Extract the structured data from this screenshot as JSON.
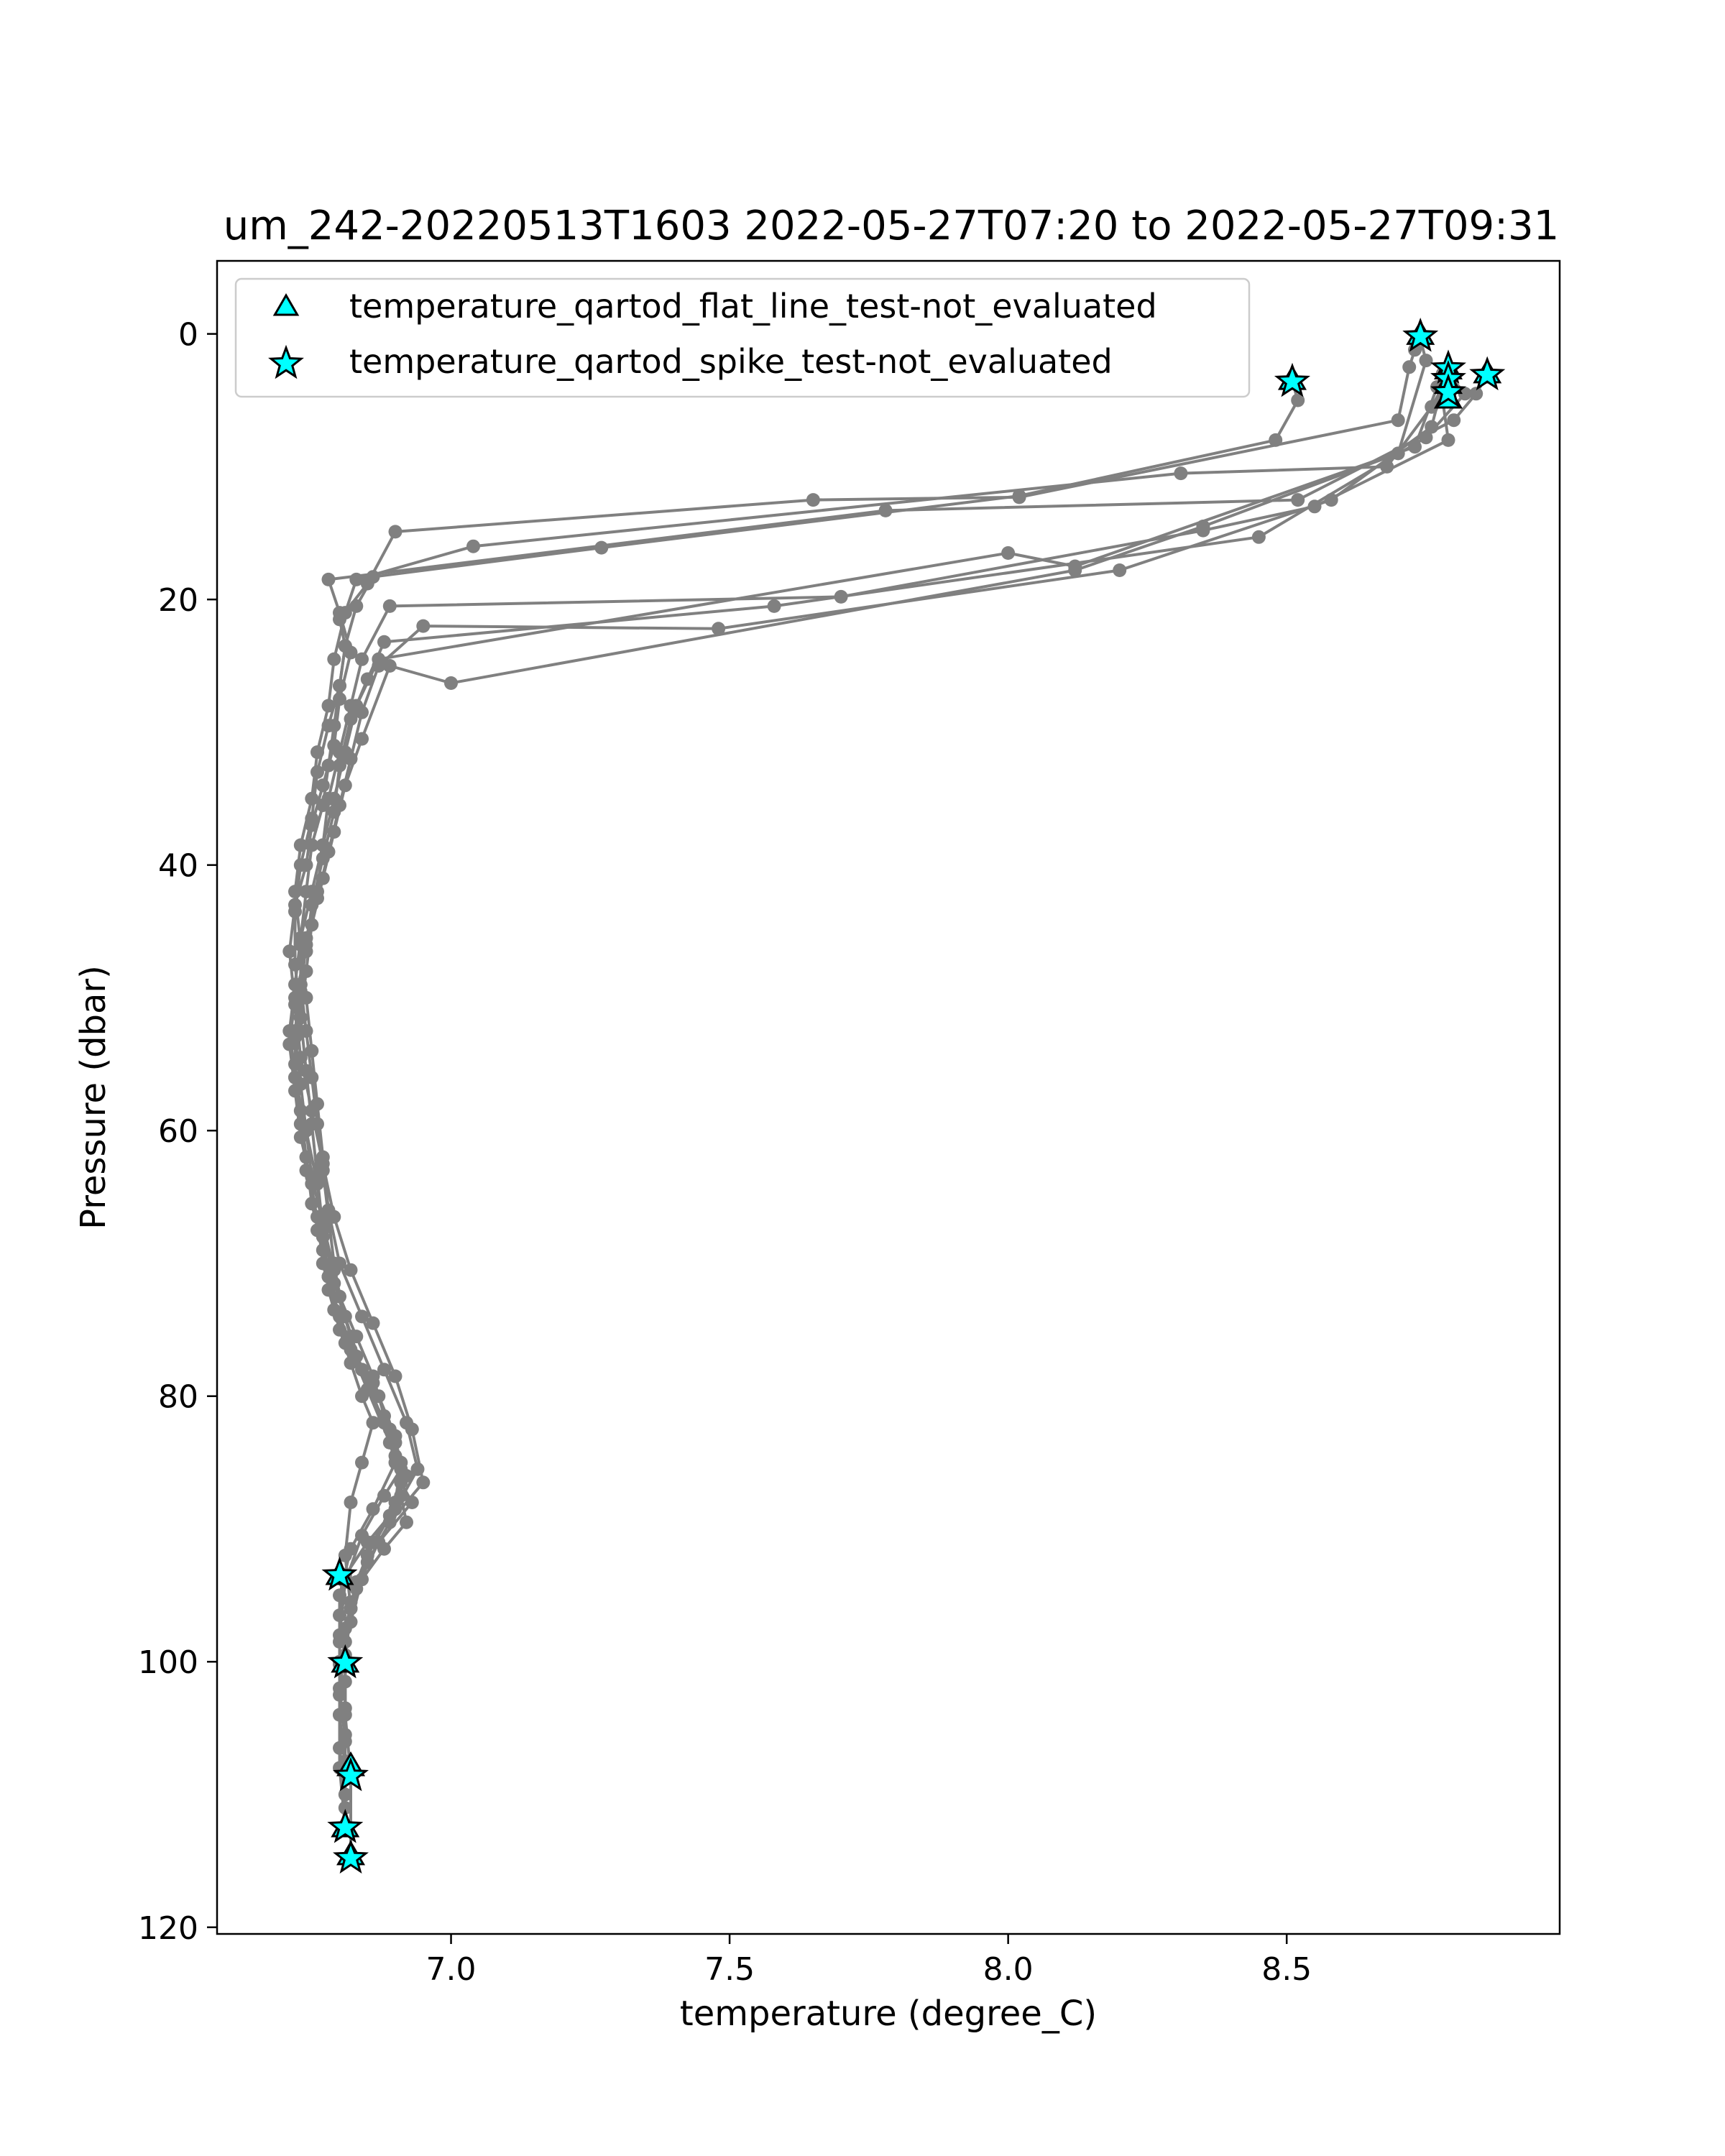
{
  "chart_data": {
    "type": "line",
    "title": "um_242-20220513T1603 2022-05-27T07:20 to 2022-05-27T09:31",
    "xlabel": "temperature (degree_C)",
    "ylabel": "Pressure (dbar)",
    "xlim": [
      6.58,
      8.99
    ],
    "ylim": [
      120.5,
      -5.5
    ],
    "y_inverted": true,
    "grid": false,
    "x_ticks": [
      7.0,
      7.5,
      8.0,
      8.5
    ],
    "x_tick_labels": [
      "7.0",
      "7.5",
      "8.0",
      "8.5"
    ],
    "y_ticks": [
      0,
      20,
      40,
      60,
      80,
      100,
      120
    ],
    "y_tick_labels": [
      "0",
      "20",
      "40",
      "60",
      "80",
      "100",
      "120"
    ],
    "legend_position": "upper-left",
    "line_color": "#808080",
    "marker_color": "#00ffff",
    "legend": [
      {
        "label": "temperature_qartod_flat_line_test-not_evaluated",
        "marker": "triangle"
      },
      {
        "label": "temperature_qartod_spike_test-not_evaluated",
        "marker": "star"
      }
    ],
    "profiles": [
      {
        "x": [
          8.74,
          8.73,
          8.72,
          8.7,
          8.02,
          7.65,
          6.9,
          6.85,
          6.8,
          6.81,
          6.8,
          6.79,
          6.78,
          6.77,
          6.75,
          6.74,
          6.73,
          6.73,
          6.74,
          6.75,
          6.76,
          6.77,
          6.78,
          6.79,
          6.8,
          6.83,
          6.86,
          6.88,
          6.9,
          6.91,
          6.92,
          6.88,
          6.84,
          6.82,
          6.8,
          6.8,
          6.81,
          6.81
        ],
        "y": [
          0.2,
          1.2,
          2.5,
          6.5,
          12.3,
          12.5,
          14.9,
          18.8,
          21.5,
          23.5,
          26.5,
          29.5,
          32.5,
          35.5,
          38.5,
          42.0,
          45.5,
          49.0,
          52.5,
          56.0,
          59.5,
          63.0,
          66.5,
          70.0,
          72.5,
          75.5,
          78.5,
          81.5,
          84.5,
          87.5,
          89.5,
          91.5,
          93.8,
          97.0,
          100.2,
          104.0,
          108.0,
          111.0
        ]
      },
      {
        "x": [
          8.79,
          8.78,
          8.76,
          8.68,
          8.31,
          7.04,
          6.83,
          6.81,
          6.79,
          6.78,
          6.76,
          6.75,
          6.73,
          6.72,
          6.73,
          6.74,
          6.75,
          6.76,
          6.77,
          6.78,
          6.8,
          6.84,
          6.88,
          6.92,
          6.94,
          6.9,
          6.85,
          6.81,
          6.8,
          6.8,
          6.8,
          6.8,
          6.81
        ],
        "y": [
          2.6,
          4.0,
          5.5,
          10.0,
          10.5,
          16.0,
          18.5,
          21.0,
          24.5,
          28.0,
          31.5,
          35.0,
          38.5,
          42.0,
          46.0,
          50.0,
          54.0,
          58.0,
          62.0,
          66.0,
          70.0,
          74.0,
          78.0,
          82.0,
          85.5,
          88.5,
          91.0,
          93.5,
          96.5,
          100.0,
          104.0,
          108.0,
          112.5
        ]
      },
      {
        "x": [
          8.86,
          8.84,
          8.8,
          8.52,
          7.78,
          6.78,
          6.8,
          6.82,
          6.8,
          6.79,
          6.77,
          6.75,
          6.74,
          6.72,
          6.71,
          6.72,
          6.73,
          6.75,
          6.77,
          6.79,
          6.82,
          6.86,
          6.9,
          6.93,
          6.95,
          6.89,
          6.85,
          6.82,
          6.81,
          6.81,
          6.82,
          6.82
        ],
        "y": [
          3.1,
          4.5,
          6.5,
          12.5,
          13.3,
          18.5,
          21.0,
          24.0,
          27.5,
          31.0,
          34.0,
          37.0,
          40.0,
          43.0,
          46.5,
          50.5,
          54.5,
          58.5,
          62.5,
          66.5,
          70.5,
          74.5,
          78.5,
          82.5,
          86.5,
          89.5,
          92.5,
          96.0,
          100.0,
          104.0,
          108.5,
          114.8
        ]
      },
      {
        "x": [
          8.51,
          8.52,
          8.48,
          8.02,
          7.27,
          6.86,
          6.83,
          6.81,
          6.8,
          6.78,
          6.76,
          6.75,
          6.73,
          6.72,
          6.72,
          6.73,
          6.74,
          6.75,
          6.76,
          6.77,
          6.79,
          6.82,
          6.85,
          6.89,
          6.91,
          6.93,
          6.87,
          6.83,
          6.81,
          6.8,
          6.8,
          6.81
        ],
        "y": [
          3.6,
          5.0,
          8.0,
          12.2,
          16.1,
          18.3,
          20.5,
          23.5,
          26.5,
          29.5,
          33.0,
          36.5,
          40.0,
          43.5,
          47.5,
          51.5,
          55.5,
          59.5,
          63.5,
          67.5,
          71.5,
          75.5,
          79.5,
          83.5,
          86.5,
          88.0,
          91.0,
          94.5,
          98.5,
          102.5,
          106.5,
          110.0
        ]
      },
      {
        "x": [
          8.79,
          8.78,
          8.79,
          8.55,
          8.35,
          7.7,
          6.89,
          6.84,
          6.82,
          6.8,
          6.78,
          6.77,
          6.75,
          6.73,
          6.72,
          6.71,
          6.72,
          6.74,
          6.76,
          6.77,
          6.78,
          6.81,
          6.86,
          6.9,
          6.91,
          6.88,
          6.84,
          6.81,
          6.8,
          6.8,
          6.81
        ],
        "y": [
          4.4,
          5.0,
          8.0,
          13.0,
          14.8,
          19.8,
          20.5,
          24.5,
          28.0,
          31.5,
          35.0,
          38.5,
          42.0,
          45.5,
          49.0,
          52.5,
          56.0,
          60.0,
          64.0,
          68.0,
          71.0,
          76.0,
          79.0,
          83.0,
          85.5,
          87.5,
          90.5,
          94.0,
          98.0,
          102.0,
          106.0
        ]
      },
      {
        "x": [
          8.79,
          8.82,
          8.75,
          8.45,
          7.58,
          6.88,
          6.85,
          6.82,
          6.8,
          6.79,
          6.77,
          6.75,
          6.74,
          6.72,
          6.71,
          6.72,
          6.73,
          6.75,
          6.76,
          6.78,
          6.8,
          6.83,
          6.87,
          6.9,
          6.92,
          6.89,
          6.85,
          6.82,
          6.81,
          6.81,
          6.81
        ],
        "y": [
          3.0,
          4.5,
          7.8,
          15.3,
          20.5,
          23.2,
          26.0,
          29.0,
          32.5,
          36.0,
          39.5,
          43.0,
          46.5,
          50.0,
          53.5,
          57.0,
          60.5,
          64.0,
          67.5,
          71.0,
          74.0,
          77.0,
          80.0,
          83.5,
          86.0,
          89.0,
          92.0,
          95.5,
          99.5,
          103.5,
          107.5
        ]
      },
      {
        "x": [
          8.78,
          8.76,
          8.58,
          8.2,
          7.48,
          6.95,
          6.87,
          6.84,
          6.82,
          6.8,
          6.78,
          6.76,
          6.74,
          6.73,
          6.72,
          6.73,
          6.74,
          6.75,
          6.77,
          6.79,
          6.81,
          6.84,
          6.88,
          6.91,
          6.9,
          6.86,
          6.83,
          6.81,
          6.81,
          6.81
        ],
        "y": [
          3.8,
          7.0,
          12.5,
          17.8,
          22.2,
          22.0,
          25.0,
          28.5,
          32.0,
          35.5,
          39.0,
          42.5,
          46.0,
          49.5,
          53.0,
          56.5,
          60.0,
          63.5,
          67.0,
          70.5,
          74.0,
          78.0,
          82.0,
          85.0,
          88.0,
          91.0,
          94.0,
          97.5,
          101.5,
          105.5
        ]
      },
      {
        "x": [
          8.78,
          8.77,
          8.73,
          8.12,
          8.0,
          6.87,
          6.83,
          6.81,
          6.79,
          6.77,
          6.76,
          6.74,
          6.73,
          6.72,
          6.72,
          6.73,
          6.74,
          6.76,
          6.77,
          6.79,
          6.82,
          6.85,
          6.89,
          6.9,
          6.86,
          6.82,
          6.8,
          6.8
        ],
        "y": [
          3.0,
          4.0,
          8.5,
          17.5,
          16.5,
          24.5,
          28.0,
          31.5,
          35.0,
          38.5,
          42.0,
          45.5,
          49.0,
          52.5,
          56.0,
          59.5,
          63.0,
          66.5,
          70.0,
          73.5,
          76.5,
          79.5,
          82.5,
          85.0,
          88.5,
          91.5,
          95.0,
          98.5
        ]
      },
      {
        "x": [
          8.74,
          8.75,
          8.7,
          8.35,
          8.12,
          7.0,
          6.89,
          6.84,
          6.81,
          6.79,
          6.77,
          6.75,
          6.74,
          6.73,
          6.72,
          6.73,
          6.74,
          6.75,
          6.77,
          6.78,
          6.8,
          6.82,
          6.84,
          6.86,
          6.84,
          6.82,
          6.81,
          6.82
        ],
        "y": [
          0.4,
          2.0,
          9.0,
          14.5,
          17.8,
          26.3,
          25.0,
          30.5,
          34.0,
          37.5,
          41.0,
          44.5,
          48.0,
          51.5,
          55.0,
          58.5,
          62.0,
          65.5,
          69.0,
          72.0,
          75.0,
          77.5,
          80.0,
          82.0,
          85.0,
          88.0,
          92.0,
          96.0
        ]
      }
    ],
    "markers_triangle": [
      {
        "x": 8.74,
        "y": 0.2
      },
      {
        "x": 8.51,
        "y": 3.6
      },
      {
        "x": 8.79,
        "y": 2.8
      },
      {
        "x": 8.79,
        "y": 3.9
      },
      {
        "x": 8.79,
        "y": 5.0
      },
      {
        "x": 8.86,
        "y": 3.1
      },
      {
        "x": 6.8,
        "y": 93.6
      },
      {
        "x": 6.81,
        "y": 100.2
      },
      {
        "x": 6.82,
        "y": 108.0
      },
      {
        "x": 6.81,
        "y": 112.6
      },
      {
        "x": 6.82,
        "y": 114.7
      }
    ],
    "markers_star": [
      {
        "x": 8.74,
        "y": 0.2
      },
      {
        "x": 8.51,
        "y": 3.6
      },
      {
        "x": 8.79,
        "y": 2.6
      },
      {
        "x": 8.79,
        "y": 3.4
      },
      {
        "x": 8.79,
        "y": 4.4
      },
      {
        "x": 8.86,
        "y": 3.1
      },
      {
        "x": 6.8,
        "y": 93.5
      },
      {
        "x": 6.81,
        "y": 100.1
      },
      {
        "x": 6.82,
        "y": 108.6
      },
      {
        "x": 6.81,
        "y": 112.5
      },
      {
        "x": 6.82,
        "y": 114.8
      }
    ]
  }
}
